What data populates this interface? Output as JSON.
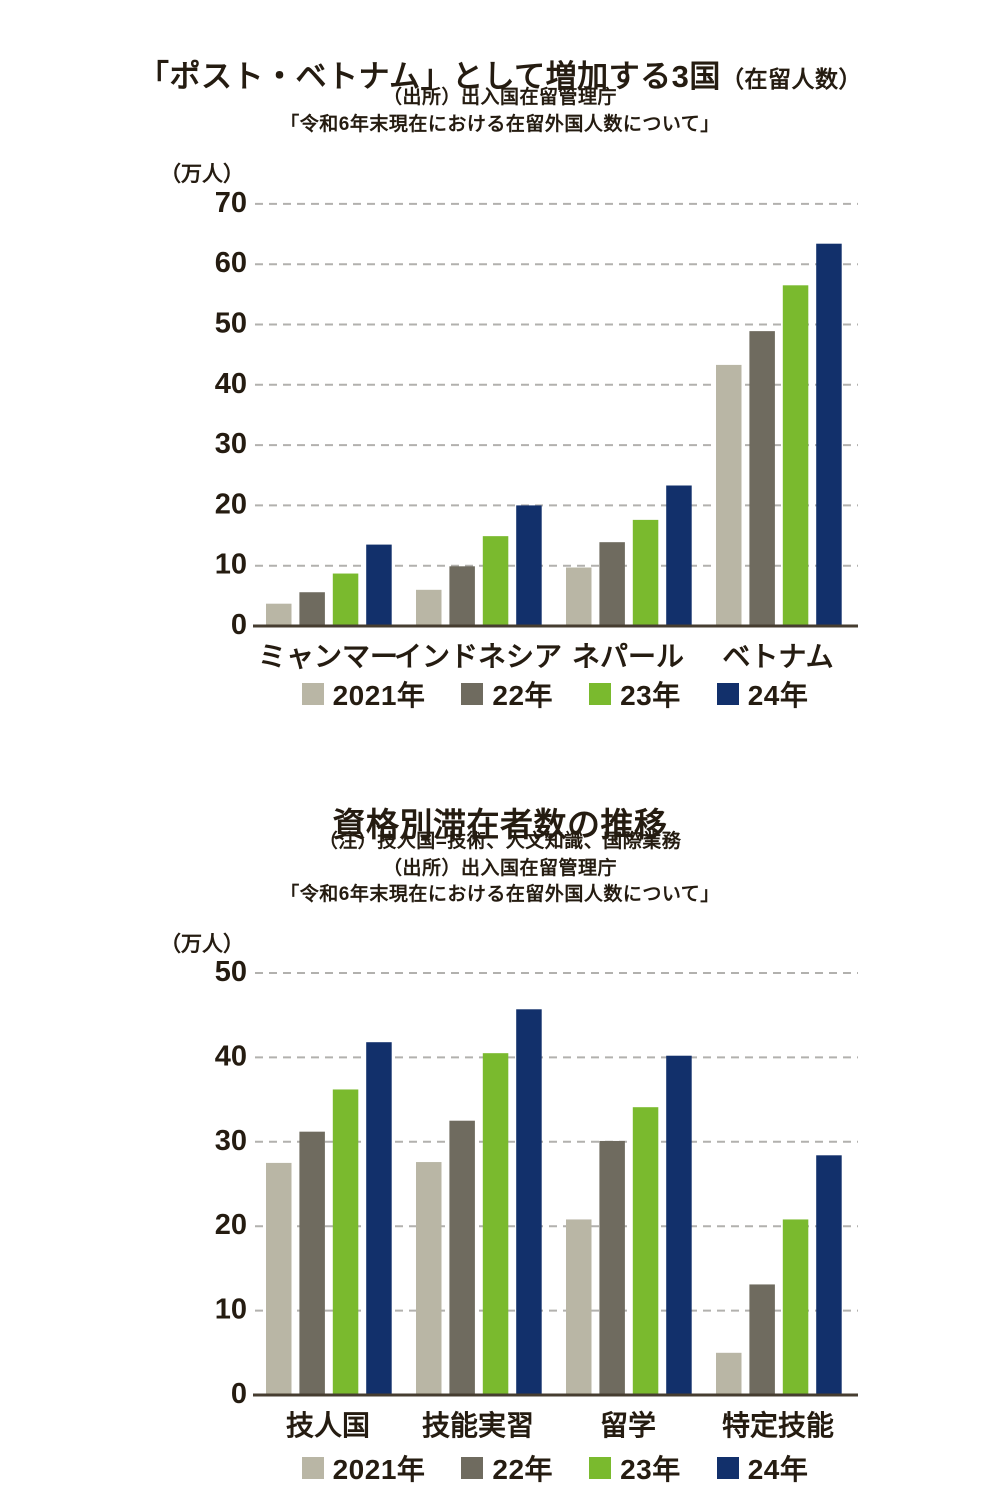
{
  "page": {
    "background": "#ffffff",
    "text_color": "#251c11",
    "gridline_color": "#b2b1ae",
    "axis_color": "#463d30"
  },
  "chart_data": [
    {
      "type": "bar",
      "title": "「ポスト・ベトナム」として増加する3国",
      "title_suffix": "（在留人数）",
      "subtitles": [
        "（出所）出入国在留管理庁",
        "「令和6年末現在における在留外国人数について」"
      ],
      "unit_label": "（万人）",
      "categories": [
        "ミャンマー",
        "インドネシア",
        "ネパール",
        "ベトナム"
      ],
      "series": [
        {
          "name": "2021年",
          "color": "#b9b6a5",
          "values": [
            3.7,
            6.0,
            9.7,
            43.3
          ]
        },
        {
          "name": "22年",
          "color": "#6f6b5f",
          "values": [
            5.6,
            9.9,
            13.9,
            48.9
          ]
        },
        {
          "name": "23年",
          "color": "#7aba2e",
          "values": [
            8.7,
            14.9,
            17.6,
            56.5
          ]
        },
        {
          "name": "24年",
          "color": "#12306b",
          "values": [
            13.5,
            20.0,
            23.3,
            63.4
          ]
        }
      ],
      "ylim": [
        0,
        70
      ],
      "ytick_step": 10,
      "grid": "horizontal-dashed",
      "legend_position": "bottom"
    },
    {
      "type": "bar",
      "title": "資格別滞在者数の推移",
      "title_suffix": "",
      "subtitles": [
        "（注）技人国=技術、人文知識、国際業務",
        "（出所）出入国在留管理庁",
        "「令和6年末現在における在留外国人数について」"
      ],
      "unit_label": "（万人）",
      "categories": [
        "技人国",
        "技能実習",
        "留学",
        "特定技能"
      ],
      "series": [
        {
          "name": "2021年",
          "color": "#b9b6a5",
          "values": [
            27.5,
            27.6,
            20.8,
            5.0
          ]
        },
        {
          "name": "22年",
          "color": "#6f6b5f",
          "values": [
            31.2,
            32.5,
            30.1,
            13.1
          ]
        },
        {
          "name": "23年",
          "color": "#7aba2e",
          "values": [
            36.2,
            40.5,
            34.1,
            20.8
          ]
        },
        {
          "name": "24年",
          "color": "#12306b",
          "values": [
            41.8,
            45.7,
            40.2,
            28.4
          ]
        }
      ],
      "ylim": [
        0,
        50
      ],
      "ytick_step": 10,
      "grid": "horizontal-dashed",
      "legend_position": "bottom"
    }
  ]
}
